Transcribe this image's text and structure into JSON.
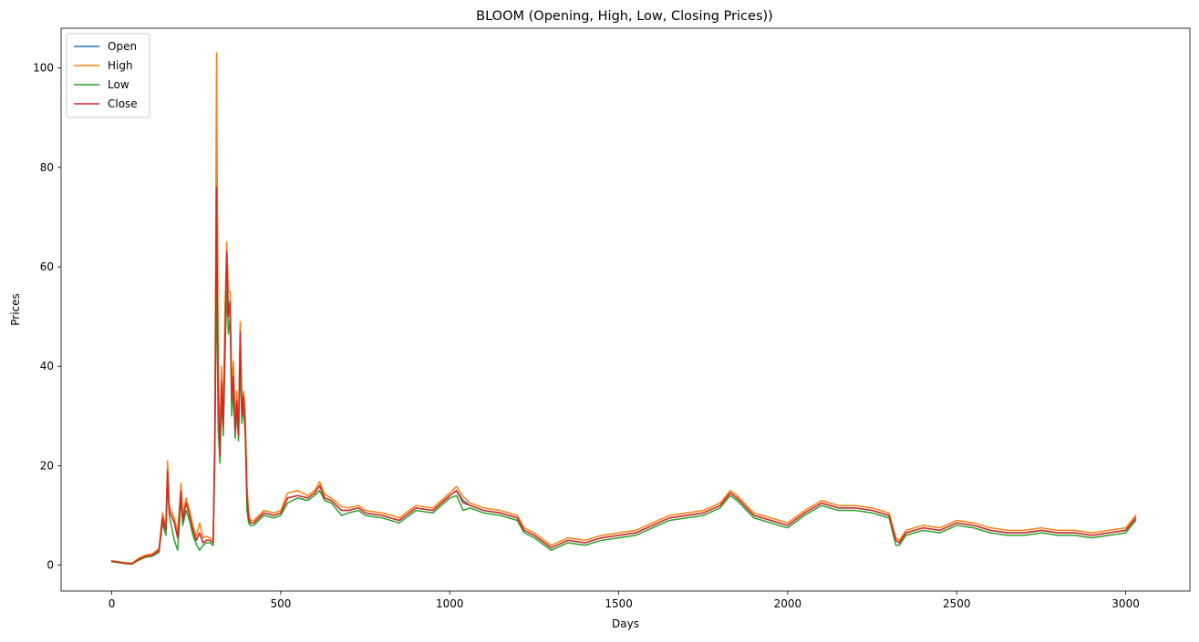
{
  "chart_data": {
    "type": "line",
    "title": "BLOOM (Opening, High, Low, Closing Prices))",
    "xlabel": "Days",
    "ylabel": "Prices",
    "xlim": [
      -150,
      3190
    ],
    "ylim": [
      -5.2,
      108
    ],
    "xticks": [
      0,
      500,
      1000,
      1500,
      2000,
      2500,
      3000
    ],
    "yticks": [
      0,
      20,
      40,
      60,
      80,
      100
    ],
    "grid": false,
    "legend_position": "top-left",
    "series": [
      {
        "name": "Open",
        "color": "#1f77b4",
        "x": [
          0,
          20,
          40,
          60,
          80,
          100,
          120,
          140,
          150,
          160,
          165,
          170,
          185,
          195,
          205,
          210,
          220,
          230,
          240,
          250,
          260,
          270,
          280,
          290,
          300,
          305,
          310,
          315,
          320,
          325,
          330,
          335,
          340,
          345,
          350,
          355,
          360,
          365,
          370,
          375,
          380,
          385,
          390,
          395,
          400,
          405,
          410,
          420,
          450,
          480,
          500,
          520,
          550,
          580,
          600,
          615,
          630,
          650,
          680,
          700,
          730,
          750,
          800,
          850,
          900,
          950,
          1000,
          1020,
          1040,
          1060,
          1080,
          1100,
          1150,
          1200,
          1220,
          1250,
          1280,
          1300,
          1350,
          1400,
          1450,
          1500,
          1550,
          1600,
          1650,
          1700,
          1750,
          1800,
          1830,
          1850,
          1900,
          1950,
          2000,
          2050,
          2100,
          2150,
          2200,
          2250,
          2300,
          2320,
          2330,
          2350,
          2400,
          2450,
          2500,
          2550,
          2600,
          2650,
          2700,
          2750,
          2800,
          2850,
          2900,
          2950,
          3000,
          3030
        ],
        "values": [
          0.8,
          0.6,
          0.4,
          0.3,
          1.2,
          1.8,
          2.0,
          3.0,
          9.5,
          7.0,
          19.0,
          11.0,
          8.5,
          5.5,
          15.0,
          9.0,
          12.5,
          10.0,
          7.0,
          5.0,
          6.5,
          4.5,
          5.0,
          5.0,
          4.5,
          25.0,
          76.0,
          33.0,
          22.0,
          37.0,
          28.0,
          45.0,
          62.0,
          50.0,
          53.0,
          33.0,
          38.0,
          27.0,
          33.0,
          26.0,
          46.0,
          30.0,
          34.0,
          28.0,
          14.0,
          9.5,
          8.5,
          8.5,
          10.5,
          10.0,
          10.5,
          13.5,
          14.0,
          13.5,
          14.5,
          16.0,
          13.5,
          13.0,
          11.0,
          11.0,
          11.5,
          10.5,
          10.0,
          9.0,
          11.5,
          11.0,
          14.0,
          15.0,
          13.0,
          12.0,
          11.5,
          11.0,
          10.5,
          9.5,
          7.0,
          6.0,
          4.5,
          3.5,
          5.0,
          4.5,
          5.5,
          6.0,
          6.5,
          8.0,
          9.5,
          10.0,
          10.5,
          12.0,
          14.5,
          13.5,
          10.0,
          9.0,
          8.0,
          10.5,
          12.5,
          11.5,
          11.5,
          11.0,
          10.0,
          5.0,
          4.5,
          6.5,
          7.5,
          7.0,
          8.5,
          8.0,
          7.0,
          6.5,
          6.5,
          7.0,
          6.5,
          6.5,
          6.0,
          6.5,
          7.0,
          9.5
        ]
      },
      {
        "name": "High",
        "color": "#ff7f0e",
        "x": [
          0,
          20,
          40,
          60,
          80,
          100,
          120,
          140,
          150,
          160,
          165,
          170,
          185,
          195,
          205,
          210,
          220,
          230,
          240,
          250,
          260,
          270,
          280,
          290,
          300,
          305,
          310,
          315,
          320,
          325,
          330,
          335,
          340,
          345,
          350,
          355,
          360,
          365,
          370,
          375,
          380,
          385,
          390,
          395,
          400,
          405,
          410,
          420,
          450,
          480,
          500,
          520,
          550,
          580,
          600,
          615,
          630,
          650,
          680,
          700,
          730,
          750,
          800,
          830,
          850,
          900,
          950,
          1000,
          1020,
          1040,
          1060,
          1080,
          1100,
          1150,
          1200,
          1220,
          1250,
          1280,
          1300,
          1350,
          1400,
          1450,
          1500,
          1550,
          1600,
          1650,
          1700,
          1750,
          1800,
          1830,
          1850,
          1900,
          1950,
          2000,
          2050,
          2100,
          2150,
          2200,
          2250,
          2300,
          2320,
          2330,
          2350,
          2400,
          2450,
          2500,
          2550,
          2600,
          2650,
          2700,
          2750,
          2800,
          2850,
          2900,
          2950,
          3000,
          3030
        ],
        "values": [
          0.9,
          0.7,
          0.5,
          0.4,
          1.4,
          2.0,
          2.3,
          3.4,
          10.5,
          8.0,
          21.0,
          12.0,
          9.5,
          6.5,
          16.5,
          10.0,
          13.5,
          11.0,
          8.0,
          5.8,
          8.5,
          5.5,
          5.8,
          5.5,
          5.0,
          28.0,
          103.0,
          40.0,
          26.0,
          40.0,
          30.0,
          52.0,
          65.0,
          55.0,
          55.0,
          36.0,
          41.0,
          29.0,
          35.0,
          28.0,
          49.0,
          32.0,
          35.0,
          30.0,
          16.0,
          10.5,
          9.0,
          9.0,
          11.0,
          10.5,
          11.0,
          14.5,
          15.0,
          14.0,
          15.0,
          16.8,
          14.2,
          13.5,
          11.8,
          11.5,
          12.0,
          11.0,
          10.5,
          10.0,
          9.5,
          12.0,
          11.5,
          14.5,
          15.8,
          13.8,
          12.5,
          12.0,
          11.5,
          11.0,
          10.0,
          7.5,
          6.5,
          5.0,
          4.0,
          5.5,
          5.0,
          6.0,
          6.5,
          7.0,
          8.5,
          10.0,
          10.5,
          11.0,
          12.5,
          15.0,
          14.0,
          10.5,
          9.5,
          8.5,
          11.0,
          13.0,
          12.0,
          12.0,
          11.5,
          10.5,
          5.5,
          5.0,
          7.0,
          8.0,
          7.5,
          9.0,
          8.5,
          7.5,
          7.0,
          7.0,
          7.5,
          7.0,
          7.0,
          6.5,
          7.0,
          7.5,
          10.0
        ]
      },
      {
        "name": "Low",
        "color": "#2ca02c",
        "x": [
          0,
          20,
          40,
          60,
          80,
          100,
          120,
          140,
          150,
          160,
          165,
          170,
          185,
          195,
          205,
          210,
          220,
          230,
          240,
          250,
          260,
          270,
          280,
          290,
          300,
          305,
          310,
          315,
          320,
          325,
          330,
          335,
          340,
          345,
          350,
          355,
          360,
          365,
          370,
          375,
          380,
          385,
          390,
          395,
          400,
          405,
          410,
          420,
          450,
          480,
          500,
          520,
          550,
          580,
          600,
          615,
          630,
          650,
          680,
          700,
          730,
          750,
          800,
          850,
          900,
          950,
          1000,
          1020,
          1040,
          1060,
          1080,
          1100,
          1150,
          1200,
          1220,
          1250,
          1280,
          1300,
          1350,
          1400,
          1450,
          1500,
          1550,
          1600,
          1650,
          1700,
          1750,
          1800,
          1830,
          1850,
          1900,
          1950,
          2000,
          2050,
          2100,
          2150,
          2200,
          2250,
          2300,
          2320,
          2330,
          2350,
          2400,
          2450,
          2500,
          2550,
          2600,
          2650,
          2700,
          2750,
          2800,
          2850,
          2900,
          2950,
          3000,
          3030
        ],
        "values": [
          0.7,
          0.5,
          0.3,
          0.2,
          1.0,
          1.6,
          1.8,
          2.6,
          8.5,
          6.0,
          17.0,
          10.0,
          5.0,
          3.0,
          13.5,
          8.0,
          11.0,
          9.0,
          6.0,
          4.2,
          3.0,
          4.0,
          4.5,
          4.5,
          4.0,
          22.0,
          60.0,
          27.0,
          20.5,
          34.0,
          26.0,
          42.0,
          55.0,
          46.5,
          50.0,
          30.0,
          35.0,
          25.5,
          31.0,
          25.0,
          42.0,
          28.5,
          32.0,
          26.0,
          11.0,
          8.5,
          8.0,
          8.0,
          10.0,
          9.5,
          10.0,
          12.5,
          13.5,
          13.0,
          14.0,
          15.0,
          13.0,
          12.5,
          10.0,
          10.5,
          11.0,
          10.0,
          9.5,
          8.5,
          11.0,
          10.5,
          13.5,
          14.0,
          11.0,
          11.5,
          11.0,
          10.5,
          10.0,
          9.0,
          6.5,
          5.5,
          4.0,
          3.0,
          4.5,
          4.0,
          5.0,
          5.5,
          6.0,
          7.5,
          9.0,
          9.5,
          10.0,
          11.5,
          14.0,
          13.0,
          9.5,
          8.5,
          7.5,
          10.0,
          12.0,
          11.0,
          11.0,
          10.5,
          9.5,
          4.0,
          4.0,
          6.0,
          7.0,
          6.5,
          8.0,
          7.5,
          6.5,
          6.0,
          6.0,
          6.5,
          6.0,
          6.0,
          5.5,
          6.0,
          6.5,
          9.0
        ]
      },
      {
        "name": "Close",
        "color": "#d62728",
        "x": [
          0,
          20,
          40,
          60,
          80,
          100,
          120,
          140,
          150,
          160,
          165,
          170,
          185,
          195,
          205,
          210,
          220,
          230,
          240,
          250,
          260,
          270,
          280,
          290,
          300,
          305,
          310,
          315,
          320,
          325,
          330,
          335,
          340,
          345,
          350,
          355,
          360,
          365,
          370,
          375,
          380,
          385,
          390,
          395,
          400,
          405,
          410,
          420,
          450,
          480,
          500,
          520,
          550,
          580,
          600,
          615,
          630,
          650,
          680,
          700,
          730,
          750,
          800,
          850,
          900,
          950,
          1000,
          1020,
          1040,
          1060,
          1080,
          1100,
          1150,
          1200,
          1220,
          1250,
          1280,
          1300,
          1350,
          1400,
          1450,
          1500,
          1550,
          1600,
          1650,
          1700,
          1750,
          1800,
          1830,
          1850,
          1900,
          1950,
          2000,
          2050,
          2100,
          2150,
          2200,
          2250,
          2300,
          2320,
          2330,
          2350,
          2400,
          2450,
          2500,
          2550,
          2600,
          2650,
          2700,
          2750,
          2800,
          2850,
          2900,
          2950,
          3000,
          3030
        ],
        "values": [
          0.8,
          0.6,
          0.4,
          0.3,
          1.2,
          1.8,
          2.0,
          3.0,
          9.5,
          7.0,
          19.0,
          11.0,
          8.5,
          5.5,
          15.0,
          9.0,
          12.5,
          10.0,
          7.0,
          5.0,
          6.5,
          4.5,
          5.0,
          5.0,
          4.5,
          25.0,
          76.0,
          33.0,
          22.0,
          37.0,
          28.0,
          45.0,
          63.0,
          50.0,
          53.0,
          33.0,
          38.0,
          27.0,
          33.0,
          26.0,
          47.0,
          30.0,
          34.0,
          28.0,
          14.0,
          9.5,
          8.5,
          8.5,
          10.5,
          10.0,
          10.5,
          13.5,
          14.0,
          13.5,
          14.5,
          16.0,
          13.5,
          13.0,
          11.0,
          11.0,
          11.5,
          10.5,
          10.0,
          9.0,
          11.5,
          11.0,
          14.0,
          15.0,
          12.5,
          12.0,
          11.5,
          11.0,
          10.5,
          9.5,
          7.0,
          6.0,
          4.5,
          3.5,
          5.0,
          4.5,
          5.5,
          6.0,
          6.5,
          8.0,
          9.5,
          10.0,
          10.5,
          12.0,
          14.5,
          13.5,
          10.0,
          9.0,
          8.0,
          10.5,
          12.5,
          11.5,
          11.5,
          11.0,
          10.0,
          5.0,
          4.5,
          6.5,
          7.5,
          7.0,
          8.5,
          8.0,
          7.0,
          6.5,
          6.5,
          7.0,
          6.5,
          6.5,
          6.0,
          6.5,
          7.0,
          9.5
        ]
      }
    ]
  }
}
